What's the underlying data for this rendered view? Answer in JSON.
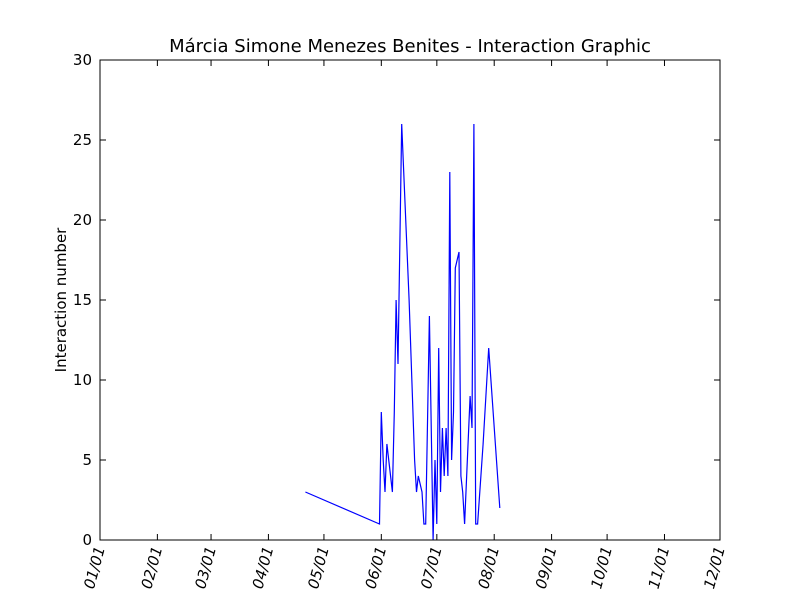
{
  "chart_data": {
    "type": "line",
    "title": "Márcia Simone Menezes Benites - Interaction Graphic",
    "xlabel": "",
    "ylabel": "Interaction number",
    "xlim": [
      "2024-01-01",
      "2024-12-01"
    ],
    "ylim": [
      0,
      30
    ],
    "grid": false,
    "x_ticks": [
      "2024-01-01",
      "2024-02-01",
      "2024-03-01",
      "2024-04-01",
      "2024-05-01",
      "2024-06-01",
      "2024-07-01",
      "2024-08-01",
      "2024-09-01",
      "2024-10-01",
      "2024-11-01",
      "2024-12-01"
    ],
    "x_tick_labels": [
      "01/01",
      "02/01",
      "03/01",
      "04/01",
      "05/01",
      "06/01",
      "07/01",
      "08/01",
      "09/01",
      "10/01",
      "11/01",
      "12/01"
    ],
    "y_ticks": [
      0,
      5,
      10,
      15,
      20,
      25,
      30
    ],
    "y_tick_labels": [
      "0",
      "5",
      "10",
      "15",
      "20",
      "25",
      "30"
    ],
    "series": [
      {
        "color": "#0000ff",
        "x": [
          "2024-04-21",
          "2024-05-31",
          "2024-06-01",
          "2024-06-02",
          "2024-06-03",
          "2024-06-04",
          "2024-06-07",
          "2024-06-08",
          "2024-06-09",
          "2024-06-10",
          "2024-06-12",
          "2024-06-16",
          "2024-06-19",
          "2024-06-20",
          "2024-06-21",
          "2024-06-23",
          "2024-06-24",
          "2024-06-25",
          "2024-06-27",
          "2024-06-29",
          "2024-06-30",
          "2024-07-01",
          "2024-07-02",
          "2024-07-03",
          "2024-07-04",
          "2024-07-05",
          "2024-07-06",
          "2024-07-07",
          "2024-07-08",
          "2024-07-09",
          "2024-07-10",
          "2024-07-11",
          "2024-07-13",
          "2024-07-14",
          "2024-07-15",
          "2024-07-16",
          "2024-07-19",
          "2024-07-20",
          "2024-07-21",
          "2024-07-22",
          "2024-07-23",
          "2024-07-26",
          "2024-07-29",
          "2024-08-04"
        ],
        "y": [
          3,
          1,
          8,
          5,
          3,
          6,
          3,
          8,
          15,
          11,
          26,
          15,
          5,
          3,
          4,
          3,
          1,
          1,
          14,
          0,
          5,
          1,
          12,
          3,
          7,
          4,
          7,
          4,
          23,
          5,
          8,
          17,
          18,
          4,
          3,
          1,
          9,
          7,
          26,
          1,
          1,
          6,
          12,
          2
        ]
      }
    ]
  }
}
